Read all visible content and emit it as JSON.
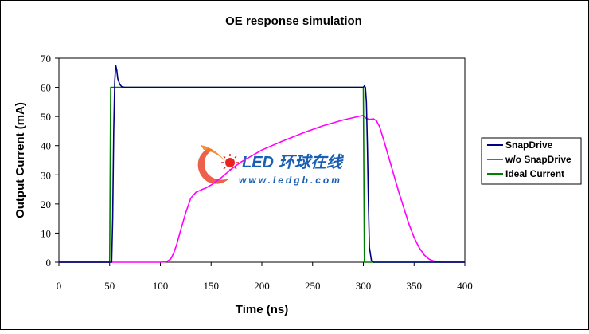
{
  "chart_data": {
    "type": "line",
    "title": "OE response simulation",
    "xlabel": "Time (ns)",
    "ylabel": "Output Current (mA)",
    "xlim": [
      0,
      400
    ],
    "ylim": [
      0,
      70
    ],
    "xticks": [
      0,
      50,
      100,
      150,
      200,
      250,
      300,
      350,
      400
    ],
    "yticks": [
      0,
      10,
      20,
      30,
      40,
      50,
      60,
      70
    ],
    "grid": false,
    "legend": "right",
    "series": [
      {
        "name": "SnapDrive",
        "color": "#00007f",
        "x": [
          0,
          52,
          53,
          54,
          55,
          56,
          57,
          58,
          60,
          62,
          65,
          70,
          80,
          100,
          150,
          200,
          250,
          300,
          301,
          302,
          303,
          304,
          305,
          306,
          308,
          310,
          400
        ],
        "y": [
          0,
          0,
          15,
          45,
          62,
          67.5,
          66,
          63,
          61,
          60.2,
          60,
          60,
          60,
          60,
          60,
          60,
          60,
          60,
          60.5,
          60,
          55,
          40,
          20,
          5,
          0.5,
          0,
          0
        ]
      },
      {
        "name": "w/o SnapDrive",
        "color": "#ff00ff",
        "x": [
          0,
          50,
          60,
          70,
          80,
          90,
          100,
          106,
          110,
          113,
          116,
          120,
          125,
          130,
          135,
          140,
          145,
          150,
          160,
          170,
          180,
          190,
          200,
          220,
          240,
          260,
          280,
          295,
          300,
          303,
          306,
          310,
          313,
          316,
          320,
          325,
          330,
          335,
          340,
          345,
          350,
          355,
          360,
          365,
          370,
          375,
          380,
          400
        ],
        "y": [
          0,
          0,
          0,
          0,
          0,
          0,
          0,
          0.2,
          1,
          3,
          6,
          11,
          17,
          22,
          24,
          24.8,
          25.5,
          26.5,
          29,
          32,
          34.5,
          36.5,
          38.5,
          41.5,
          44.3,
          46.8,
          48.8,
          50,
          50.4,
          49.3,
          49,
          49.2,
          48.5,
          46.5,
          42,
          36,
          30,
          24,
          18.5,
          13,
          8.5,
          5,
          2.5,
          1,
          0.3,
          0.05,
          0,
          0
        ]
      },
      {
        "name": "Ideal Current",
        "color": "#008000",
        "x": [
          0,
          50,
          51,
          300,
          301,
          400
        ],
        "y": [
          0,
          0,
          60,
          60,
          0,
          0
        ]
      }
    ],
    "watermark": {
      "brand": "LED",
      "chinese": "环球在线",
      "url": "www.ledgb.com"
    }
  }
}
